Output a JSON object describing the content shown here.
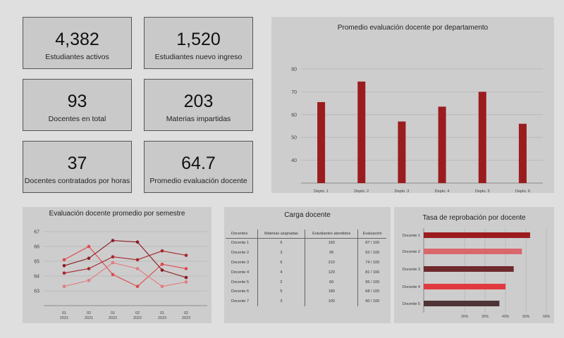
{
  "kpis": [
    {
      "value": "4,382",
      "label": "Estudiantes activos"
    },
    {
      "value": "1,520",
      "label": "Estudiantes nuevo ingreso"
    },
    {
      "value": "93",
      "label": "Docentes en total"
    },
    {
      "value": "203",
      "label": "Materias impartidas"
    },
    {
      "value": "37",
      "label": "Docentes contratados por horas"
    },
    {
      "value": "64.7",
      "label": "Promedio evaluación docente"
    }
  ],
  "colors": {
    "bar": "#9b1c1f",
    "grid": "#b5b5b5"
  },
  "chart_data": [
    {
      "type": "bar",
      "title": "Promedio evaluación docente por departamento",
      "categories": [
        "Depto. 1",
        "Depto. 2",
        "Depto. 3",
        "Depto. 4",
        "Depto. 5",
        "Depto. 6"
      ],
      "values": [
        65.5,
        74.5,
        57,
        63.5,
        70,
        56
      ],
      "ylim": [
        30,
        80
      ],
      "yticks": [
        "40",
        "50",
        "60",
        "70",
        "80"
      ],
      "grid": true
    },
    {
      "type": "line",
      "title": "Evaluación docente promedio por semestre",
      "categories": [
        "01\n2021",
        "02\n2021",
        "01\n2022",
        "02\n2022",
        "01\n2023",
        "02\n2023"
      ],
      "ylim": [
        62,
        67
      ],
      "yticks": [
        "63",
        "64",
        "65",
        "66",
        "67"
      ],
      "series": [
        {
          "color": "#e0474c",
          "values": [
            65.1,
            66.0,
            64.1,
            63.3,
            64.8,
            64.5
          ]
        },
        {
          "color": "#8c1a22",
          "values": [
            64.7,
            65.2,
            66.4,
            66.3,
            64.4,
            63.9
          ]
        },
        {
          "color": "#a8262d",
          "values": [
            64.2,
            64.5,
            65.3,
            65.1,
            65.7,
            65.4
          ]
        },
        {
          "color": "#e37b7e",
          "values": [
            63.3,
            63.7,
            64.9,
            64.5,
            63.3,
            63.6
          ]
        }
      ]
    },
    {
      "type": "table",
      "title": "Carga docente",
      "columns": [
        "Docentes",
        "Materias asignadas",
        "Estudiantes atendidos",
        "Evaluación"
      ],
      "rows": [
        [
          "Docente 1",
          "5",
          "160",
          "87 / 100"
        ],
        [
          "Docente 2",
          "3",
          "95",
          "92 / 100"
        ],
        [
          "Docente 3",
          "6",
          "210",
          "74 / 100"
        ],
        [
          "Docente 4",
          "4",
          "120",
          "81 / 100"
        ],
        [
          "Docente 5",
          "2",
          "60",
          "95 / 100"
        ],
        [
          "Docente 6",
          "5",
          "180",
          "68 / 100"
        ],
        [
          "Docente 7",
          "3",
          "100",
          "90 / 100"
        ]
      ]
    },
    {
      "type": "bar",
      "orientation": "horizontal",
      "title": "Tasa de reprobación por docente",
      "categories": [
        "Docente 1",
        "Docente 2",
        "Docente 3",
        "Docente 4",
        "Docente 5"
      ],
      "values": [
        52,
        48,
        44,
        40,
        37
      ],
      "colors": [
        "#9b1c1f",
        "#d9686d",
        "#6e2a2d",
        "#e03a3e",
        "#4e3436"
      ],
      "xlim": [
        0,
        61
      ],
      "xticks": [
        "20%",
        "30%",
        "40%",
        "50%",
        "60%"
      ],
      "xtick_values": [
        20,
        30,
        40,
        50,
        60
      ]
    }
  ]
}
